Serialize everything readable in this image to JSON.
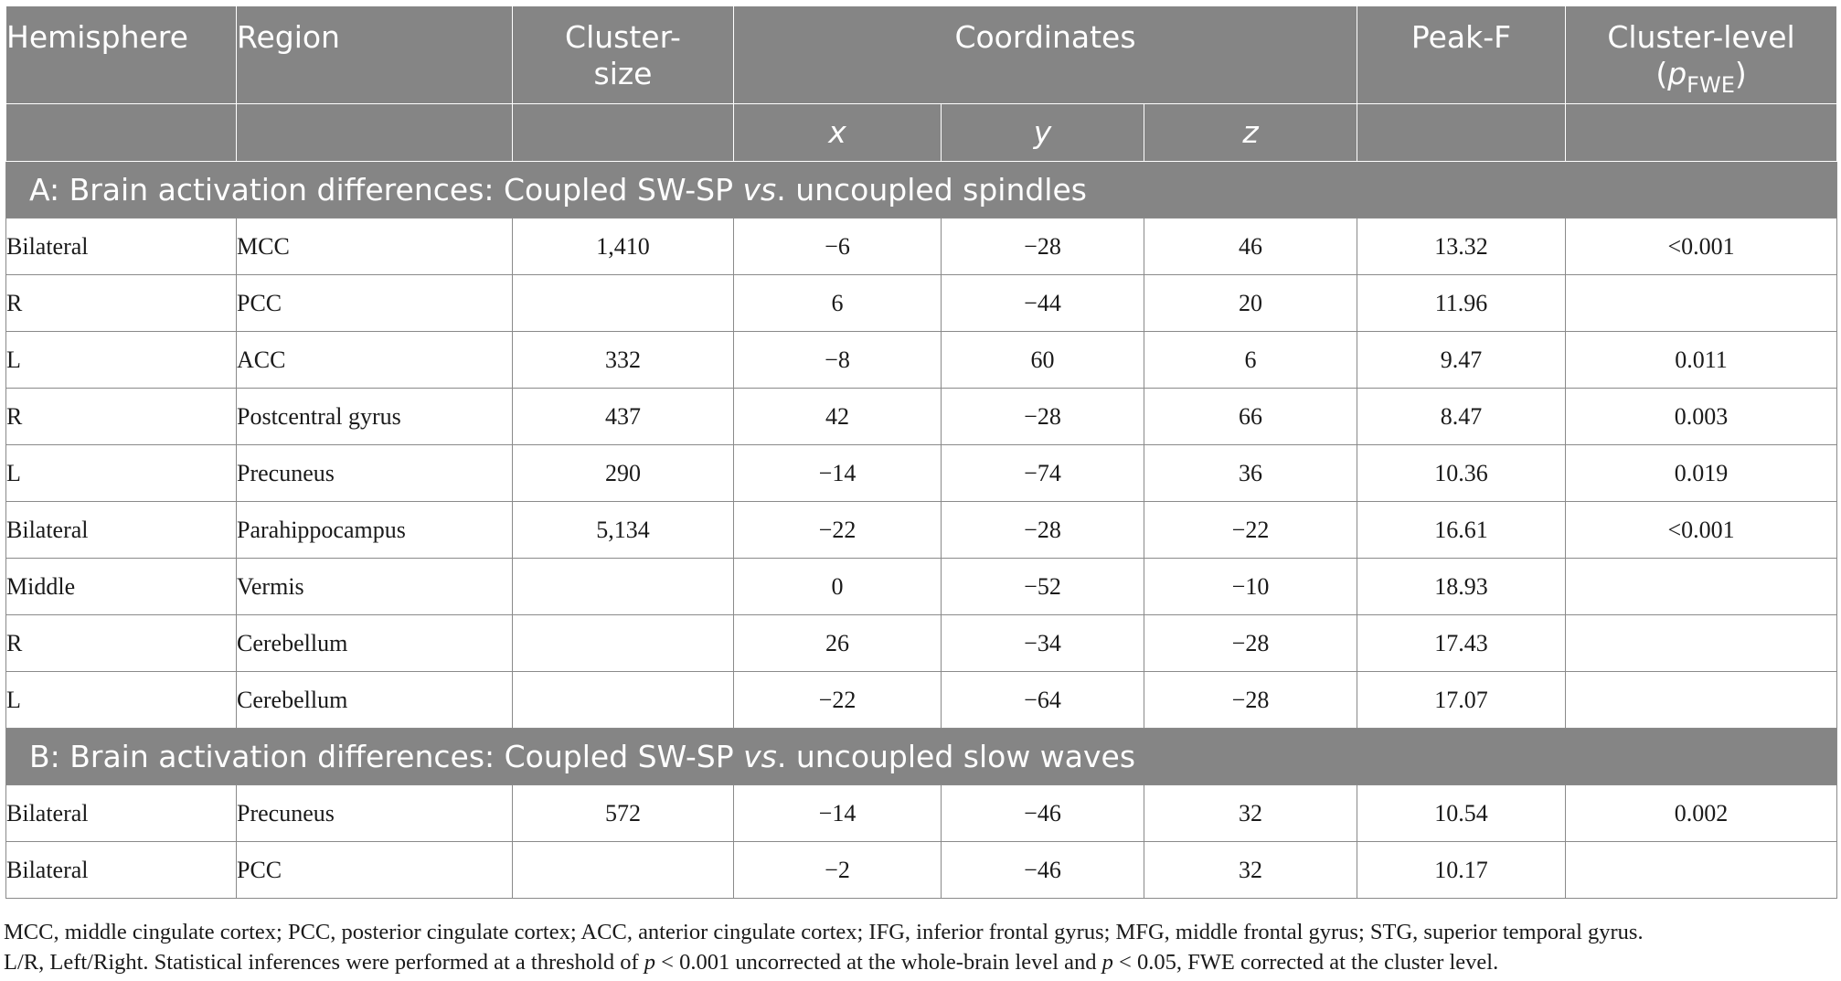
{
  "table": {
    "header": {
      "hemisphere": "Hemisphere",
      "region": "Region",
      "cluster_size_line1": "Cluster-",
      "cluster_size_line2": "size",
      "coordinates": "Coordinates",
      "peak_f": "Peak-F",
      "cluster_level_line1": "Cluster-level",
      "cluster_level_p": "p",
      "cluster_level_sub": "FWE",
      "x": "x",
      "y": "y",
      "z": "z"
    },
    "section_a": {
      "prefix": "A: Brain activation differences: Coupled SW-SP ",
      "vs": "vs",
      "suffix": ". uncoupled spindles",
      "rows": [
        {
          "hemisphere": "Bilateral",
          "region": "MCC",
          "cluster_size": "1,410",
          "x": "−6",
          "y": "−28",
          "z": "46",
          "peak_f": "13.32",
          "p": "<0.001"
        },
        {
          "hemisphere": "R",
          "region": "PCC",
          "cluster_size": "",
          "x": "6",
          "y": "−44",
          "z": "20",
          "peak_f": "11.96",
          "p": ""
        },
        {
          "hemisphere": "L",
          "region": "ACC",
          "cluster_size": "332",
          "x": "−8",
          "y": "60",
          "z": "6",
          "peak_f": "9.47",
          "p": "0.011"
        },
        {
          "hemisphere": "R",
          "region": "Postcentral gyrus",
          "cluster_size": "437",
          "x": "42",
          "y": "−28",
          "z": "66",
          "peak_f": "8.47",
          "p": "0.003"
        },
        {
          "hemisphere": "L",
          "region": "Precuneus",
          "cluster_size": "290",
          "x": "−14",
          "y": "−74",
          "z": "36",
          "peak_f": "10.36",
          "p": "0.019"
        },
        {
          "hemisphere": "Bilateral",
          "region": "Parahippocampus",
          "cluster_size": "5,134",
          "x": "−22",
          "y": "−28",
          "z": "−22",
          "peak_f": "16.61",
          "p": "<0.001"
        },
        {
          "hemisphere": "Middle",
          "region": "Vermis",
          "cluster_size": "",
          "x": "0",
          "y": "−52",
          "z": "−10",
          "peak_f": "18.93",
          "p": ""
        },
        {
          "hemisphere": "R",
          "region": "Cerebellum",
          "cluster_size": "",
          "x": "26",
          "y": "−34",
          "z": "−28",
          "peak_f": "17.43",
          "p": ""
        },
        {
          "hemisphere": "L",
          "region": "Cerebellum",
          "cluster_size": "",
          "x": "−22",
          "y": "−64",
          "z": "−28",
          "peak_f": "17.07",
          "p": ""
        }
      ]
    },
    "section_b": {
      "prefix": "B: Brain activation differences: Coupled SW-SP ",
      "vs": "vs",
      "suffix": ". uncoupled slow waves",
      "rows": [
        {
          "hemisphere": "Bilateral",
          "region": "Precuneus",
          "cluster_size": "572",
          "x": "−14",
          "y": "−46",
          "z": "32",
          "peak_f": "10.54",
          "p": "0.002"
        },
        {
          "hemisphere": "Bilateral",
          "region": "PCC",
          "cluster_size": "",
          "x": "−2",
          "y": "−46",
          "z": "32",
          "peak_f": "10.17",
          "p": ""
        }
      ]
    }
  },
  "footnote": {
    "line1": "MCC, middle cingulate cortex; PCC, posterior cingulate cortex; ACC, anterior cingulate cortex; IFG, inferior frontal gyrus; MFG, middle frontal gyrus; STG, superior temporal gyrus.",
    "line2_a": "L/R, Left/Right. Statistical inferences were performed at a threshold of ",
    "p1": "p",
    "line2_b": " < 0.001 uncorrected at the whole-brain level and ",
    "p2": "p",
    "line2_c": " < 0.05, FWE corrected at the cluster level."
  }
}
